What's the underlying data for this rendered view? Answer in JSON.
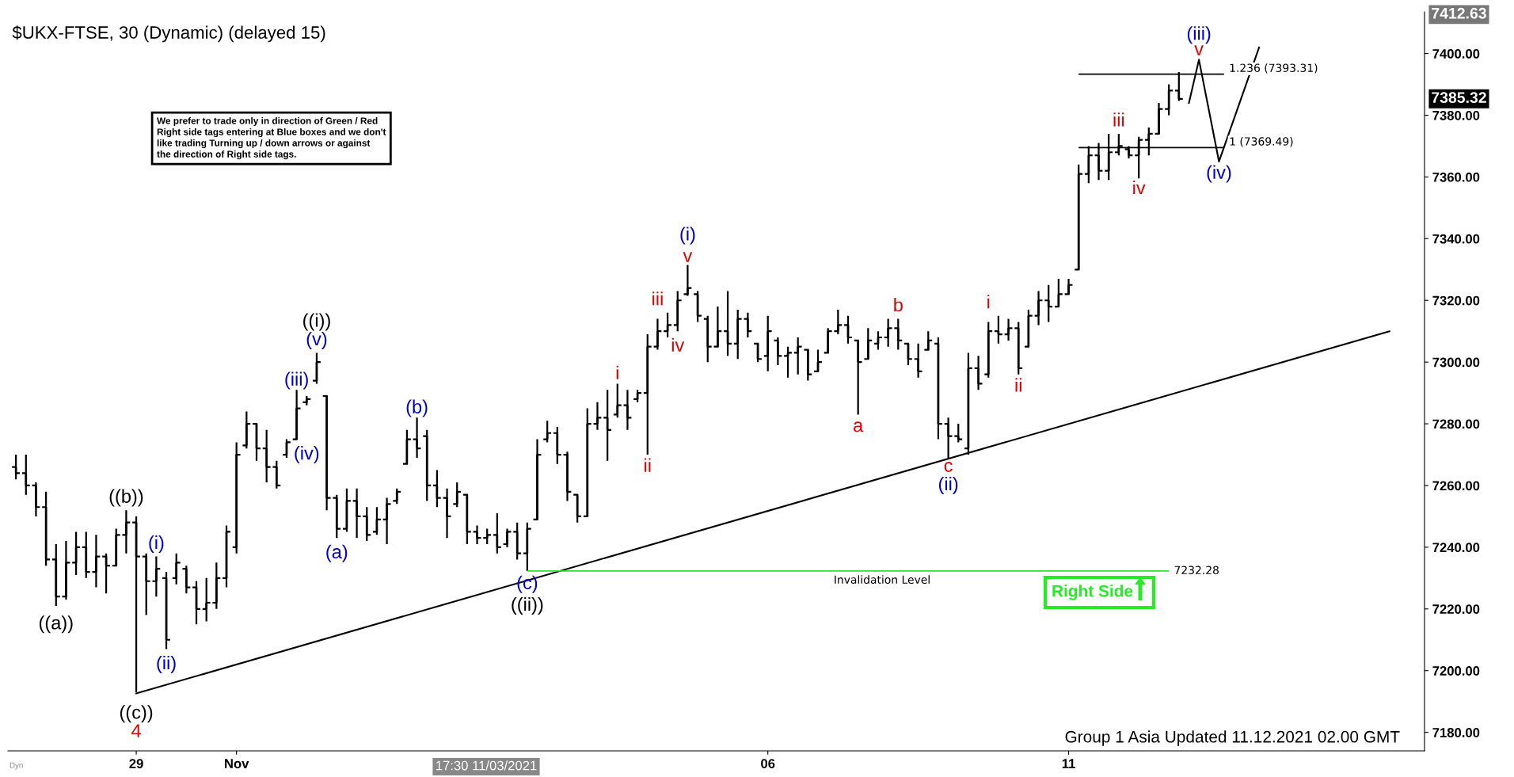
{
  "chart_data": {
    "type": "candlestick",
    "title": "$UKX-FTSE, 30 (Dynamic) (delayed 15)",
    "categories": [
      null,
      null,
      null,
      null,
      null,
      null,
      null,
      null,
      null,
      null,
      null,
      null,
      "29",
      null,
      null,
      null,
      null,
      null,
      null,
      null,
      null,
      null,
      "Nov",
      null,
      null,
      null,
      null,
      null,
      null,
      null,
      null,
      null,
      null,
      null,
      null,
      null,
      null,
      null,
      null,
      null,
      null,
      null,
      null,
      null,
      null,
      null,
      null,
      null,
      null,
      null,
      null,
      null,
      null,
      null,
      null,
      null,
      null,
      null,
      null,
      null,
      null,
      null,
      null,
      null,
      null,
      null,
      null,
      null,
      null,
      null,
      null,
      null,
      null,
      null,
      null,
      "06",
      null,
      null,
      null,
      null,
      null,
      null,
      null,
      null,
      null,
      null,
      null,
      null,
      null,
      null,
      null,
      null,
      null,
      null,
      null,
      null,
      null,
      null,
      null,
      null,
      null,
      null,
      null,
      null,
      null,
      "11",
      null,
      null,
      null,
      null,
      null,
      null,
      null,
      null,
      null,
      null,
      null,
      null,
      null,
      null,
      null,
      null,
      null,
      null,
      null,
      null,
      null,
      null,
      null,
      null,
      null,
      null,
      null,
      null,
      null,
      null,
      null,
      null,
      null,
      null,
      null
    ],
    "ohlc": [
      [
        7266,
        7270,
        7262,
        7264
      ],
      [
        7264,
        7270,
        7257,
        7260
      ],
      [
        7260,
        7261,
        7250,
        7253
      ],
      [
        7253,
        7258,
        7234,
        7236
      ],
      [
        7236,
        7241,
        7221,
        7224
      ],
      [
        7224,
        7242,
        7223,
        7235
      ],
      [
        7235,
        7245,
        7231,
        7240
      ],
      [
        7240,
        7245,
        7230,
        7232
      ],
      [
        7232,
        7244,
        7227,
        7237
      ],
      [
        7237,
        7238,
        7225,
        7234
      ],
      [
        7234,
        7246,
        7234,
        7244
      ],
      [
        7244,
        7252,
        7238,
        7248
      ],
      [
        7248,
        7250,
        7193,
        7237
      ],
      [
        7237,
        7238,
        7218,
        7229
      ],
      [
        7229,
        7237,
        7224,
        7233
      ],
      [
        7230,
        7232,
        7207,
        7210
      ],
      [
        7230,
        7238,
        7228,
        7235
      ],
      [
        7233,
        7234,
        7225,
        7227
      ],
      [
        7227,
        7229,
        7215,
        7220
      ],
      [
        7220,
        7230,
        7216,
        7222
      ],
      [
        7222,
        7235,
        7220,
        7230
      ],
      [
        7230,
        7247,
        7227,
        7245
      ],
      [
        7240,
        7274,
        7238,
        7270
      ],
      [
        7273,
        7284,
        7272,
        7280
      ],
      [
        7280,
        7280,
        7268,
        7272
      ],
      [
        7272,
        7278,
        7261,
        7266
      ],
      [
        7266,
        7268,
        7259,
        7260
      ],
      [
        7270,
        7275,
        7269,
        7274
      ],
      [
        7275,
        7291,
        7275,
        7285
      ],
      [
        7287,
        7289,
        7286,
        7288
      ],
      [
        7294,
        7303,
        7293,
        7300
      ],
      [
        7289,
        7289,
        7252,
        7256
      ],
      [
        7256,
        7257,
        7243,
        7246
      ],
      [
        7246,
        7259,
        7245,
        7255
      ],
      [
        7255,
        7259,
        7243,
        7250
      ],
      [
        7250,
        7253,
        7242,
        7244
      ],
      [
        7245,
        7253,
        7244,
        7249
      ],
      [
        7249,
        7256,
        7241,
        7254
      ],
      [
        7255,
        7259,
        7254,
        7258
      ],
      [
        7267,
        7278,
        7267,
        7275
      ],
      [
        7275,
        7282,
        7269,
        7272
      ],
      [
        7276,
        7278,
        7255,
        7260
      ],
      [
        7260,
        7265,
        7253,
        7256
      ],
      [
        7256,
        7259,
        7243,
        7250
      ],
      [
        7254,
        7261,
        7253,
        7258
      ],
      [
        7257,
        7257,
        7241,
        7245
      ],
      [
        7245,
        7247,
        7241,
        7243
      ],
      [
        7243,
        7246,
        7241,
        7244
      ],
      [
        7244,
        7251,
        7238,
        7240
      ],
      [
        7241,
        7246,
        7240,
        7245
      ],
      [
        7245,
        7248,
        7236,
        7238
      ],
      [
        7238,
        7248,
        7232.3,
        7246
      ],
      [
        7249,
        7275,
        7249,
        7270
      ],
      [
        7275,
        7281,
        7274,
        7277
      ],
      [
        7277,
        7279,
        7267,
        7270
      ],
      [
        7270,
        7271,
        7255,
        7258
      ],
      [
        7257,
        7257,
        7248,
        7250
      ],
      [
        7250,
        7285,
        7250,
        7280
      ],
      [
        7280,
        7287,
        7278,
        7282
      ],
      [
        7282,
        7291,
        7268,
        7278
      ],
      [
        7283,
        7293,
        7282,
        7286
      ],
      [
        7286,
        7291,
        7278,
        7282
      ],
      [
        7288,
        7291,
        7287,
        7290
      ],
      [
        7290,
        7309,
        7270,
        7305
      ],
      [
        7305,
        7314,
        7304,
        7310
      ],
      [
        7310,
        7316,
        7308,
        7312
      ],
      [
        7312,
        7323,
        7310,
        7320
      ],
      [
        7322,
        7331.5,
        7321.5,
        7324
      ],
      [
        7322,
        7323,
        7313,
        7315
      ],
      [
        7314,
        7315,
        7300,
        7305
      ],
      [
        7305,
        7318,
        7305,
        7310
      ],
      [
        7310,
        7323,
        7302,
        7306
      ],
      [
        7306,
        7317,
        7301,
        7314
      ],
      [
        7314,
        7316,
        7308,
        7310
      ],
      [
        7306,
        7306,
        7300,
        7301
      ],
      [
        7302,
        7315,
        7297,
        7310
      ],
      [
        7307,
        7308,
        7299,
        7302
      ],
      [
        7302,
        7305,
        7295,
        7303
      ],
      [
        7303,
        7308,
        7296,
        7305
      ],
      [
        7304,
        7304,
        7294,
        7296
      ],
      [
        7297,
        7304,
        7297,
        7300
      ],
      [
        7303,
        7311,
        7303,
        7310
      ],
      [
        7310,
        7317,
        7309,
        7312
      ],
      [
        7312,
        7315,
        7306,
        7308
      ],
      [
        7307,
        7307,
        7283,
        7300
      ],
      [
        7301,
        7311,
        7301,
        7307
      ],
      [
        7306,
        7310,
        7304,
        7308
      ],
      [
        7308,
        7314,
        7305,
        7311
      ],
      [
        7311,
        7314,
        7304,
        7307
      ],
      [
        7306,
        7306,
        7299,
        7301
      ],
      [
        7301,
        7306,
        7295,
        7297
      ],
      [
        7304,
        7310,
        7304,
        7307
      ],
      [
        7306,
        7308,
        7275,
        7280
      ],
      [
        7280,
        7282,
        7269,
        7276
      ],
      [
        7276,
        7280,
        7274,
        7275
      ],
      [
        7272,
        7303,
        7270,
        7298
      ],
      [
        7298,
        7302,
        7291,
        7293
      ],
      [
        7296,
        7313,
        7295,
        7310
      ],
      [
        7310,
        7315,
        7306,
        7309
      ],
      [
        7309,
        7314,
        7307,
        7311
      ],
      [
        7311,
        7313,
        7296,
        7298
      ],
      [
        7305,
        7317,
        7305,
        7315
      ],
      [
        7315,
        7323,
        7312,
        7320
      ],
      [
        7320,
        7325,
        7313,
        7318
      ],
      [
        7318,
        7327,
        7318,
        7322
      ],
      [
        7322,
        7327,
        7322,
        7325
      ],
      [
        7330,
        7364,
        7330,
        7361
      ],
      [
        7361,
        7370,
        7358,
        7367
      ],
      [
        7367,
        7371,
        7359,
        7362
      ],
      [
        7362,
        7374,
        7359,
        7368
      ],
      [
        7368,
        7374,
        7367,
        7370
      ],
      [
        7369,
        7370,
        7366,
        7367
      ],
      [
        7367,
        7373,
        7359.5,
        7372
      ],
      [
        7372,
        7376,
        7367,
        7374
      ],
      [
        7374,
        7384,
        7374,
        7382
      ],
      [
        7382,
        7390,
        7380,
        7388
      ],
      [
        7388,
        7394,
        7384.6,
        7385.32
      ],
      null,
      null,
      null,
      null,
      null,
      null,
      null,
      null,
      null,
      null,
      null,
      null,
      null,
      null,
      null,
      null,
      null,
      null,
      null,
      null,
      null,
      null,
      null,
      null
    ],
    "color": "#000000",
    "series": [
      {
        "type": "line",
        "color": "#000000",
        "values": [
          null,
          null,
          null,
          null,
          null,
          null,
          null,
          null,
          null,
          null,
          null,
          null,
          7192.6,
          null,
          null,
          null,
          null,
          null,
          null,
          null,
          null,
          null,
          null,
          null,
          null,
          null,
          null,
          null,
          null,
          null,
          null,
          null,
          null,
          null,
          null,
          null,
          null,
          null,
          null,
          null,
          null,
          null,
          null,
          null,
          null,
          null,
          null,
          null,
          null,
          null,
          null,
          null,
          null,
          null,
          null,
          null,
          null,
          null,
          null,
          null,
          null,
          null,
          null,
          null,
          null,
          null,
          null,
          null,
          null,
          null,
          null,
          null,
          null,
          null,
          null,
          null,
          null,
          null,
          null,
          null,
          null,
          null,
          null,
          null,
          null,
          null,
          null,
          null,
          null,
          null,
          null,
          null,
          null,
          null,
          null,
          null,
          null,
          null,
          null,
          null,
          null,
          null,
          null,
          null,
          null,
          null,
          null,
          null,
          null,
          null,
          null,
          null,
          null,
          null,
          null,
          null,
          null,
          null,
          null,
          null,
          null,
          null,
          null,
          null,
          null,
          null,
          null,
          null,
          null,
          null,
          null,
          null,
          null,
          null,
          null,
          null,
          null,
          7310,
          null,
          null,
          null
        ]
      },
      {
        "type": "line",
        "color": "#000000",
        "values": [
          null,
          null,
          null,
          null,
          null,
          null,
          null,
          null,
          null,
          null,
          null,
          null,
          null,
          null,
          null,
          null,
          null,
          null,
          null,
          null,
          null,
          null,
          null,
          null,
          null,
          null,
          null,
          null,
          null,
          null,
          null,
          null,
          null,
          null,
          null,
          null,
          null,
          null,
          null,
          null,
          null,
          null,
          null,
          null,
          null,
          null,
          null,
          null,
          null,
          null,
          null,
          null,
          null,
          null,
          null,
          null,
          null,
          null,
          null,
          null,
          null,
          null,
          null,
          null,
          null,
          null,
          null,
          null,
          null,
          null,
          null,
          null,
          null,
          null,
          null,
          null,
          null,
          null,
          null,
          null,
          null,
          null,
          null,
          null,
          null,
          null,
          null,
          null,
          null,
          null,
          null,
          null,
          null,
          null,
          null,
          null,
          null,
          null,
          null,
          null,
          null,
          null,
          null,
          null,
          null,
          null,
          null,
          null,
          null,
          null,
          null,
          null,
          null,
          null,
          null,
          null,
          null,
          7384,
          7398,
          null,
          7365,
          null,
          null,
          null,
          7402,
          null,
          null,
          null,
          null,
          null,
          null,
          null,
          null,
          null,
          null,
          null,
          null,
          null,
          null,
          null,
          null
        ]
      }
    ],
    "ylim": [
      7174,
      7413.5
    ],
    "yticks": [
      {
        "value": 7180,
        "label": "7180.00"
      },
      {
        "value": 7200,
        "label": "7200.00"
      },
      {
        "value": 7220,
        "label": "7220.00"
      },
      {
        "value": 7240,
        "label": "7240.00"
      },
      {
        "value": 7260,
        "label": "7260.00"
      },
      {
        "value": 7280,
        "label": "7280.00"
      },
      {
        "value": 7300,
        "label": "7300.00"
      },
      {
        "value": 7320,
        "label": "7320.00"
      },
      {
        "value": 7340,
        "label": "7340.00"
      },
      {
        "value": 7360,
        "label": "7360.00"
      },
      {
        "value": 7380,
        "label": "7380.00"
      },
      {
        "value": 7400,
        "label": "7400.00"
      }
    ],
    "ref_lines": [
      {
        "axis": "y",
        "value": 7393.31,
        "label": "1.236 (7393.31)",
        "color": "#000000"
      },
      {
        "axis": "y",
        "value": 7369.49,
        "label": "1 (7369.49)",
        "color": "#000000"
      },
      {
        "axis": "y",
        "value": 7232.28,
        "label": "7232.28",
        "color": "#33dd33"
      }
    ],
    "annotations": [
      "((a))",
      "((b))",
      "((c))",
      "4",
      "(i)",
      "(ii)",
      "(iii)",
      "(iv)",
      "(v)",
      "((i))",
      "(a)",
      "(b)",
      "(c)",
      "((ii))",
      "i",
      "ii",
      "iii",
      "iv",
      "v",
      "(i)",
      "a",
      "b",
      "c",
      "(ii)",
      "i",
      "ii",
      "iii",
      "iv",
      "v",
      "(iii)",
      "(iv)",
      "7412.63",
      "7385.32",
      "We prefer to trade only in direction of Green / Red\nRight side tags entering at Blue boxes and we don't\nlike trading Turning up / down arrows or against\nthe direction of Right side tags.",
      "Invalidation Level",
      "Right Side",
      "17:30 11/03/2021",
      "Group 1 Asia Updated 11.12.2021 02.00 GMT",
      "Dyn"
    ]
  }
}
